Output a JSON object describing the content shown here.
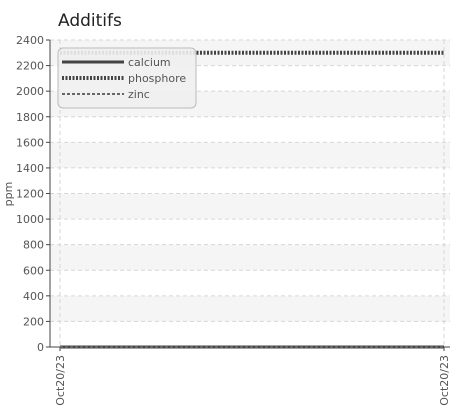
{
  "chart_data": {
    "type": "line",
    "title": "Additifs",
    "ylabel": "ppm",
    "xlabel": "",
    "ylim": [
      0,
      2400
    ],
    "yticks": [
      0,
      200,
      400,
      600,
      800,
      1000,
      1200,
      1400,
      1600,
      1800,
      2000,
      2200,
      2400
    ],
    "x_ticklabels": [
      "Oct20/23",
      "Oct20/23"
    ],
    "grid": true,
    "legend_position": "top-left",
    "series": [
      {
        "name": "calcium",
        "style": "solid",
        "color": "#444444",
        "values": [
          0,
          0
        ]
      },
      {
        "name": "phosphore",
        "style": "dotted",
        "color": "#444444",
        "values": [
          2300,
          2300
        ]
      },
      {
        "name": "zinc",
        "style": "dashed",
        "color": "#666666",
        "values": [
          0,
          0
        ]
      }
    ]
  }
}
